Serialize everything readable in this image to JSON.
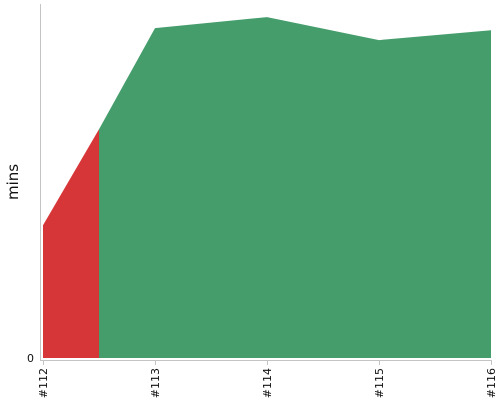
{
  "chart_data": {
    "type": "area",
    "title": "",
    "xlabel": "",
    "ylabel": "mins",
    "x": [
      "#112",
      "#113",
      "#114",
      "#115",
      "#116"
    ],
    "ylim": [
      0,
      100
    ],
    "y_ticks": [
      0
    ],
    "grid": false,
    "legend": "none",
    "series": [
      {
        "color": "#d73638",
        "points": [
          {
            "x": 0,
            "y": 37.5
          },
          {
            "x": 0.5,
            "y": 64.6
          }
        ]
      },
      {
        "color": "#459d6c",
        "points": [
          {
            "x": 0.5,
            "y": 64.6
          },
          {
            "x": 1,
            "y": 93.2
          },
          {
            "x": 2,
            "y": 96.3
          },
          {
            "x": 3,
            "y": 89.8
          },
          {
            "x": 4,
            "y": 92.6
          }
        ]
      }
    ]
  }
}
